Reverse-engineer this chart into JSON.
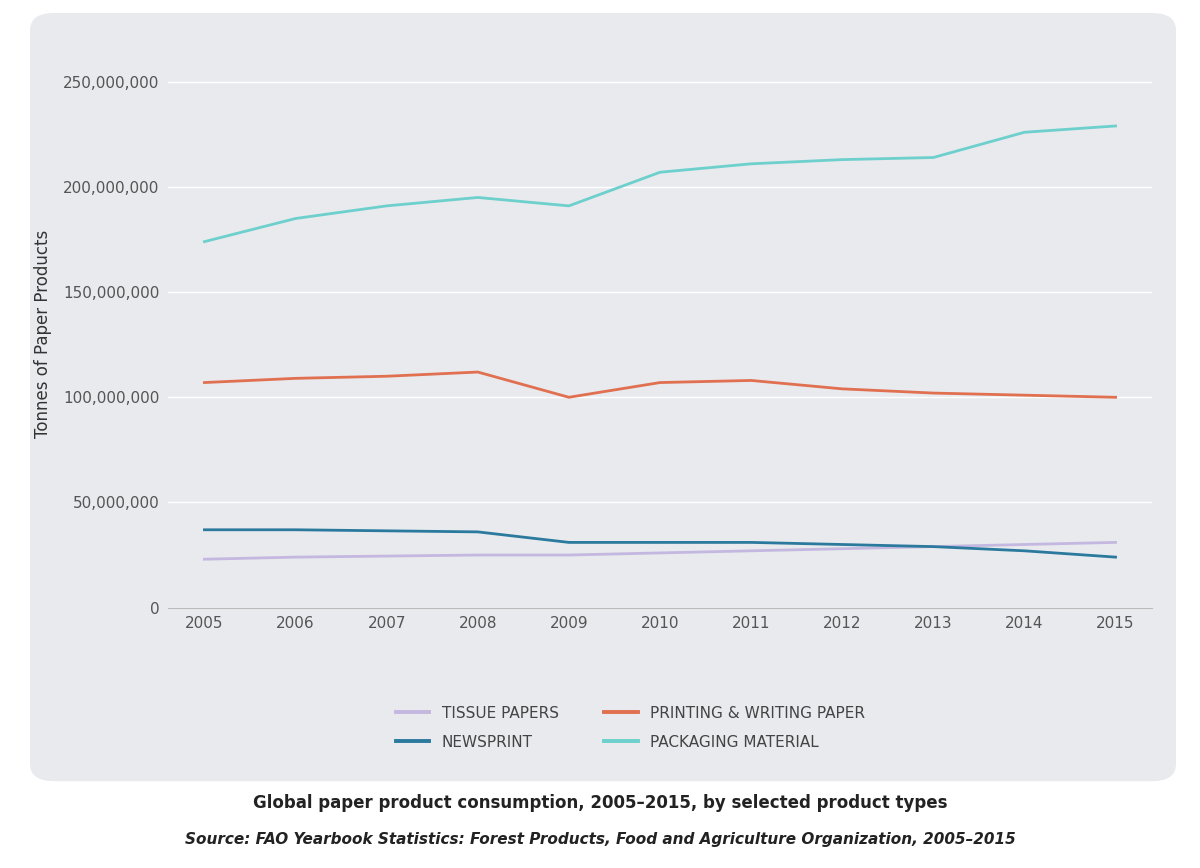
{
  "years": [
    2005,
    2006,
    2007,
    2008,
    2009,
    2010,
    2011,
    2012,
    2013,
    2014,
    2015
  ],
  "tissue_papers": [
    23000000,
    24000000,
    24500000,
    25000000,
    25000000,
    26000000,
    27000000,
    28000000,
    29000000,
    30000000,
    31000000
  ],
  "newsprint": [
    37000000,
    37000000,
    36500000,
    36000000,
    31000000,
    31000000,
    31000000,
    30000000,
    29000000,
    27000000,
    24000000
  ],
  "printing_writing": [
    107000000,
    109000000,
    110000000,
    112000000,
    100000000,
    107000000,
    108000000,
    104000000,
    102000000,
    101000000,
    100000000
  ],
  "packaging": [
    174000000,
    185000000,
    191000000,
    195000000,
    191000000,
    207000000,
    211000000,
    213000000,
    214000000,
    226000000,
    229000000
  ],
  "tissue_color": "#c4b8e0",
  "newsprint_color": "#2b7a9e",
  "printing_color": "#e07050",
  "packaging_color": "#6dd0cc",
  "tissue_label": "TISSUE PAPERS",
  "newsprint_label": "NEWSPRINT",
  "printing_label": "PRINTING & WRITING PAPER",
  "packaging_label": "PACKAGING MATERIAL",
  "ylabel": "Tonnes of Paper Products",
  "ylim": [
    0,
    260000000
  ],
  "yticks": [
    0,
    50000000,
    100000000,
    150000000,
    200000000,
    250000000
  ],
  "title": "Global paper product consumption, 2005–2015, by selected product types",
  "source": "Source: FAO Yearbook Statistics: Forest Products, Food and Agriculture Organization, 2005–2015",
  "card_color": "#e8eaee",
  "outer_bg": "#ffffff",
  "plot_bg_color": "#e8eaee",
  "line_width": 2.0
}
